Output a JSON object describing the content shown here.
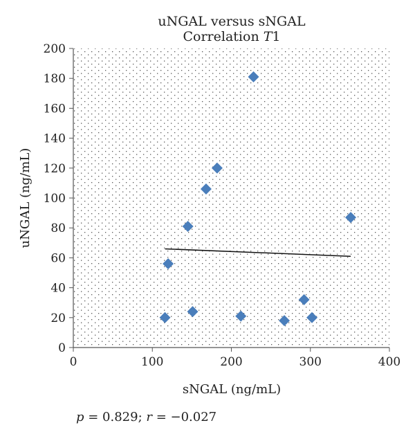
{
  "chart_data": {
    "type": "scatter",
    "title_line1": "uNGAL versus sNGAL",
    "title_line2_prefix": "Correlation ",
    "title_line2_italic": "T",
    "title_line2_suffix": "1",
    "xlabel": "sNGAL (ng/mL)",
    "ylabel": "uNGAL (ng/mL)",
    "xlim": [
      0,
      400
    ],
    "ylim": [
      0,
      200
    ],
    "x_ticks": [
      0,
      100,
      200,
      300,
      400
    ],
    "y_ticks": [
      0,
      20,
      40,
      60,
      80,
      100,
      120,
      140,
      160,
      180,
      200
    ],
    "grid": "dotted-background",
    "marker": "diamond",
    "marker_color": "#4a7ebb",
    "points": [
      {
        "x": 116,
        "y": 20
      },
      {
        "x": 120,
        "y": 56
      },
      {
        "x": 145,
        "y": 81
      },
      {
        "x": 151,
        "y": 24
      },
      {
        "x": 168,
        "y": 106
      },
      {
        "x": 182,
        "y": 120
      },
      {
        "x": 212,
        "y": 21
      },
      {
        "x": 228,
        "y": 181
      },
      {
        "x": 267,
        "y": 18
      },
      {
        "x": 292,
        "y": 32
      },
      {
        "x": 302,
        "y": 20
      },
      {
        "x": 351,
        "y": 87
      }
    ],
    "trendline": {
      "x": [
        116,
        351
      ],
      "y": [
        66,
        61
      ],
      "color": "#111111"
    }
  },
  "stats": {
    "p_symbol": "p",
    "p_text": " = 0.829; ",
    "r_symbol": "r",
    "r_text": " = −0.027"
  }
}
